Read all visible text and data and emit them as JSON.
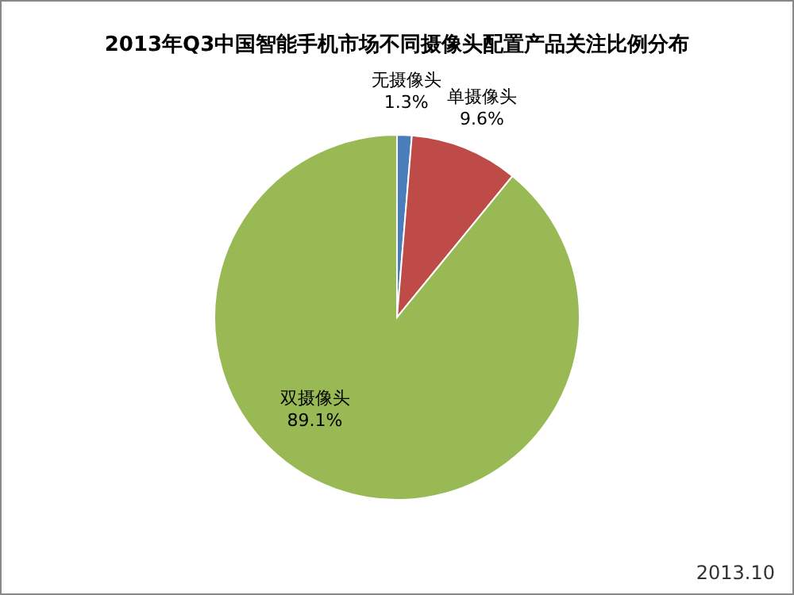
{
  "chart_data": {
    "type": "pie",
    "title": "2013年Q3中国智能手机市场不同摄像头配置产品关注比例分布",
    "categories": [
      "无摄像头",
      "单摄像头",
      "双摄像头"
    ],
    "values": [
      1.3,
      9.6,
      89.1
    ],
    "colors": [
      "#4a7ebb",
      "#be4b48",
      "#98b954"
    ],
    "value_labels": [
      "1.3%",
      "9.6%",
      "89.1%"
    ],
    "annotations": [
      "2013.10"
    ]
  }
}
